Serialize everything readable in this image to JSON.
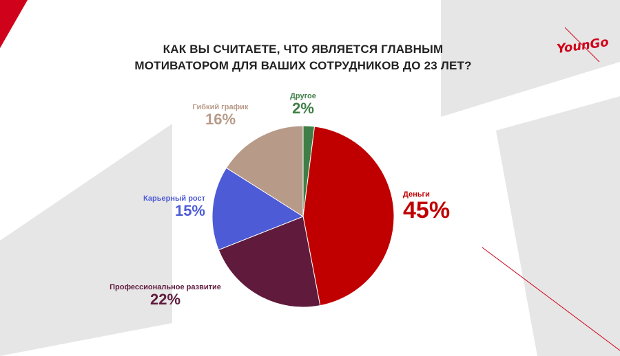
{
  "title_lines": [
    "КАК ВЫ СЧИТАЕТЕ, ЧТО ЯВЛЯЕТСЯ ГЛАВНЫМ",
    "МОТИВАТОРОМ ДЛЯ ВАШИХ СОТРУДНИКОВ ДО 23 ЛЕТ?"
  ],
  "logo": "YounGo",
  "colors": {
    "brand": "#d0021b",
    "decor_grey": "#e6e6e6"
  },
  "chart_data": {
    "type": "pie",
    "title": "КАК ВЫ СЧИТАЕТЕ, ЧТО ЯВЛЯЕТСЯ ГЛАВНЫМ МОТИВАТОРОМ ДЛЯ ВАШИХ СОТРУДНИКОВ ДО 23 ЛЕТ?",
    "start": "12 o'clock, clockwise",
    "slices": [
      {
        "label": "Другое",
        "value": 2,
        "display": "2%",
        "color": "#3f7f47"
      },
      {
        "label": "Деньги",
        "value": 45,
        "display": "45%",
        "color": "#c00000"
      },
      {
        "label": "Профессиональное развитие",
        "value": 22,
        "display": "22%",
        "color": "#5f1a3c"
      },
      {
        "label": "Карьерный рост",
        "value": 15,
        "display": "15%",
        "color": "#4d5bd6"
      },
      {
        "label": "Гибкий график",
        "value": 16,
        "display": "16%",
        "color": "#b89a88"
      }
    ]
  }
}
